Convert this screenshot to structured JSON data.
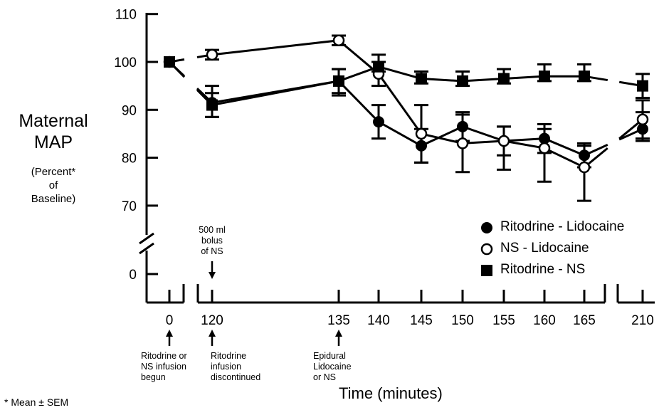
{
  "chart_data": {
    "type": "line",
    "ylabel_lines": [
      "Maternal",
      "MAP"
    ],
    "ylabel_sub_lines": [
      "(Percent*",
      "of",
      "Baseline)"
    ],
    "xlabel": "Time (minutes)",
    "footnote": "* Mean ± SEM",
    "y_ticks": [
      110,
      100,
      90,
      80,
      70
    ],
    "y_zero_tick": 0,
    "ylim": [
      70,
      110
    ],
    "axis_breaks": true,
    "x_ticks": [
      0,
      120,
      135,
      140,
      145,
      150,
      155,
      160,
      165,
      210
    ],
    "series": [
      {
        "name": "Ritodrine - Lidocaine",
        "marker": "filled-circle",
        "x": [
          0,
          120,
          135,
          140,
          145,
          150,
          155,
          160,
          165,
          210
        ],
        "y": [
          100,
          91.5,
          96,
          87.5,
          82.5,
          86.5,
          83.5,
          84,
          80.5,
          86
        ],
        "err_up": [
          0,
          3.5,
          2.5,
          3.5,
          3.5,
          3,
          3,
          3,
          2.5,
          3.5
        ],
        "err_down": [
          0,
          3,
          3,
          3.5,
          3.5,
          3,
          3,
          3,
          2.5,
          2.5
        ]
      },
      {
        "name": "NS - Lidocaine",
        "marker": "open-circle",
        "x": [
          0,
          120,
          135,
          140,
          145,
          150,
          155,
          160,
          165,
          210
        ],
        "y": [
          100,
          101.5,
          104.5,
          97.5,
          85,
          83,
          83.5,
          82,
          78,
          88
        ],
        "err_up": [
          0,
          1,
          1,
          2.5,
          6,
          6,
          3,
          4,
          4.5,
          4
        ],
        "err_down": [
          0,
          1,
          1,
          2.5,
          6,
          6,
          6,
          7,
          7,
          4
        ]
      },
      {
        "name": "Ritodrine - NS",
        "marker": "filled-square",
        "x": [
          0,
          120,
          135,
          140,
          145,
          150,
          155,
          160,
          165,
          210
        ],
        "y": [
          100,
          91,
          96,
          99,
          96.5,
          96,
          96.5,
          97,
          97,
          95
        ],
        "err_up": [
          0,
          2.5,
          2.5,
          2.5,
          1.5,
          2,
          2,
          2.5,
          2.5,
          2.5
        ],
        "err_down": [
          0,
          2.5,
          2.5,
          1,
          1,
          1,
          1,
          1,
          1,
          2.5
        ]
      }
    ],
    "legend_position": "right, inside plot",
    "annotations": [
      {
        "x": 0,
        "lines": [
          "Ritodrine or",
          "NS infusion",
          "begun"
        ],
        "arrow": "up-below-axis"
      },
      {
        "x": 120,
        "lines": [
          "Ritodrine",
          "infusion",
          "discontinued"
        ],
        "arrow": "up-below-axis"
      },
      {
        "x": 135,
        "lines": [
          "Epidural",
          "Lidocaine",
          "or NS"
        ],
        "arrow": "up-below-axis"
      },
      {
        "x": 120,
        "lines": [
          "500 ml",
          "bolus",
          "of NS"
        ],
        "arrow": "down-above-axis"
      }
    ]
  }
}
